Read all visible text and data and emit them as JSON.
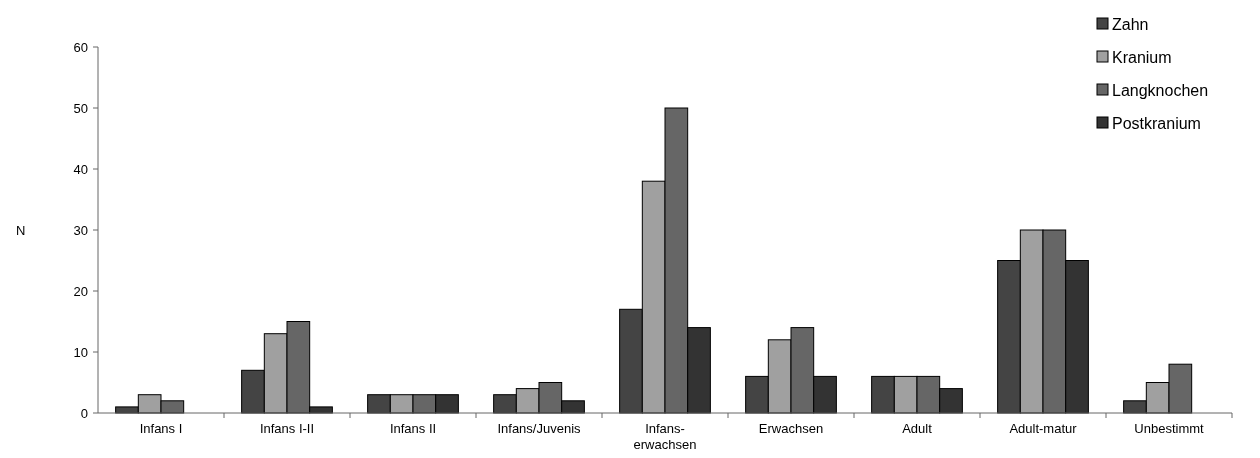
{
  "chart_data": {
    "type": "bar",
    "ylabel": "N",
    "categories": [
      "Infans I",
      "Infans I-II",
      "Infans II",
      "Infans/Juvenis",
      "Infans-erwachsen",
      "Erwachsen",
      "Adult",
      "Adult-matur",
      "Unbestimmt"
    ],
    "series": [
      {
        "name": "Zahn",
        "color": "#444444",
        "values": [
          1,
          7,
          3,
          3,
          17,
          6,
          6,
          25,
          2
        ]
      },
      {
        "name": "Kranium",
        "color": "#a0a0a0",
        "values": [
          3,
          13,
          3,
          4,
          38,
          12,
          6,
          30,
          5
        ]
      },
      {
        "name": "Langknochen",
        "color": "#666666",
        "values": [
          2,
          15,
          3,
          5,
          50,
          14,
          6,
          30,
          8
        ]
      },
      {
        "name": "Postkranium",
        "color": "#333333",
        "values": [
          null,
          1,
          3,
          2,
          14,
          6,
          4,
          25,
          null
        ]
      }
    ],
    "ylim": [
      0,
      60
    ],
    "yticks": [
      0,
      10,
      20,
      30,
      40,
      50,
      60
    ],
    "grid": false,
    "legend": "top right"
  }
}
